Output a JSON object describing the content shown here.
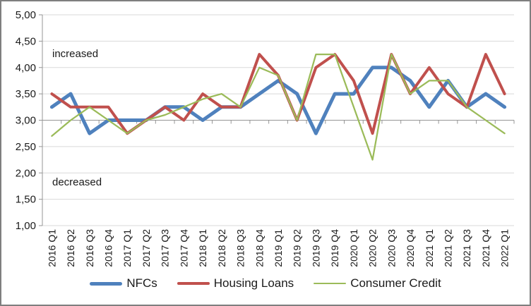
{
  "window": {
    "background": "#ffffff",
    "frame_border_color": "#7f7f7f"
  },
  "chart_data": {
    "type": "line",
    "title": "",
    "xlabel": "",
    "ylabel": "",
    "ylim": [
      1.0,
      5.0
    ],
    "ytick_step": 0.5,
    "ytick_labels": [
      "5,00",
      "4,50",
      "4,00",
      "3,50",
      "3,00",
      "2,50",
      "2,00",
      "1,50",
      "1,00"
    ],
    "x_axis_cross_at": 3.0,
    "grid": true,
    "legend_position": "bottom",
    "annotations": {
      "increased": "increased",
      "decreased": "decreased"
    },
    "colors": {
      "gridline": "#d9d9d9",
      "axis": "#959595",
      "tick_text": "#1a1a1a"
    },
    "categories": [
      "2016 Q1",
      "2016 Q2",
      "2016 Q3",
      "2016 Q4",
      "2017 Q1",
      "2017 Q2",
      "2017 Q3",
      "2017 Q4",
      "2018 Q1",
      "2018 Q2",
      "2018 Q3",
      "2018 Q4",
      "2019 Q1",
      "2019 Q2",
      "2019 Q3",
      "2019 Q4",
      "2020 Q1",
      "2020 Q2",
      "2020 Q3",
      "2020 Q4",
      "2021 Q1",
      "2021 Q2",
      "2021 Q3",
      "2021 Q4",
      "2022 Q1"
    ],
    "series": [
      {
        "name": "NFCs",
        "color": "#4F81BD",
        "stroke_width": 5,
        "values": [
          3.25,
          3.5,
          2.75,
          3.0,
          3.0,
          3.0,
          3.25,
          3.25,
          3.0,
          3.25,
          3.25,
          3.5,
          3.75,
          3.5,
          2.75,
          3.5,
          3.5,
          4.0,
          4.0,
          3.75,
          3.25,
          3.75,
          3.25,
          3.5,
          3.25
        ]
      },
      {
        "name": "Housing Loans",
        "color": "#C0504D",
        "stroke_width": 4,
        "values": [
          3.5,
          3.25,
          3.25,
          3.25,
          2.75,
          3.0,
          3.25,
          3.0,
          3.5,
          3.25,
          3.25,
          4.25,
          3.85,
          3.0,
          4.0,
          4.25,
          3.75,
          2.75,
          4.25,
          3.5,
          4.0,
          3.5,
          3.25,
          4.25,
          3.5
        ]
      },
      {
        "name": "Consumer Credit",
        "color": "#9BBB59",
        "stroke_width": 2.25,
        "values": [
          2.7,
          3.0,
          3.25,
          3.0,
          2.75,
          3.0,
          3.1,
          3.25,
          3.4,
          3.5,
          3.25,
          4.0,
          3.85,
          3.0,
          4.25,
          4.25,
          3.25,
          2.25,
          4.25,
          3.5,
          3.75,
          3.75,
          3.25,
          3.0,
          2.75
        ]
      }
    ]
  }
}
